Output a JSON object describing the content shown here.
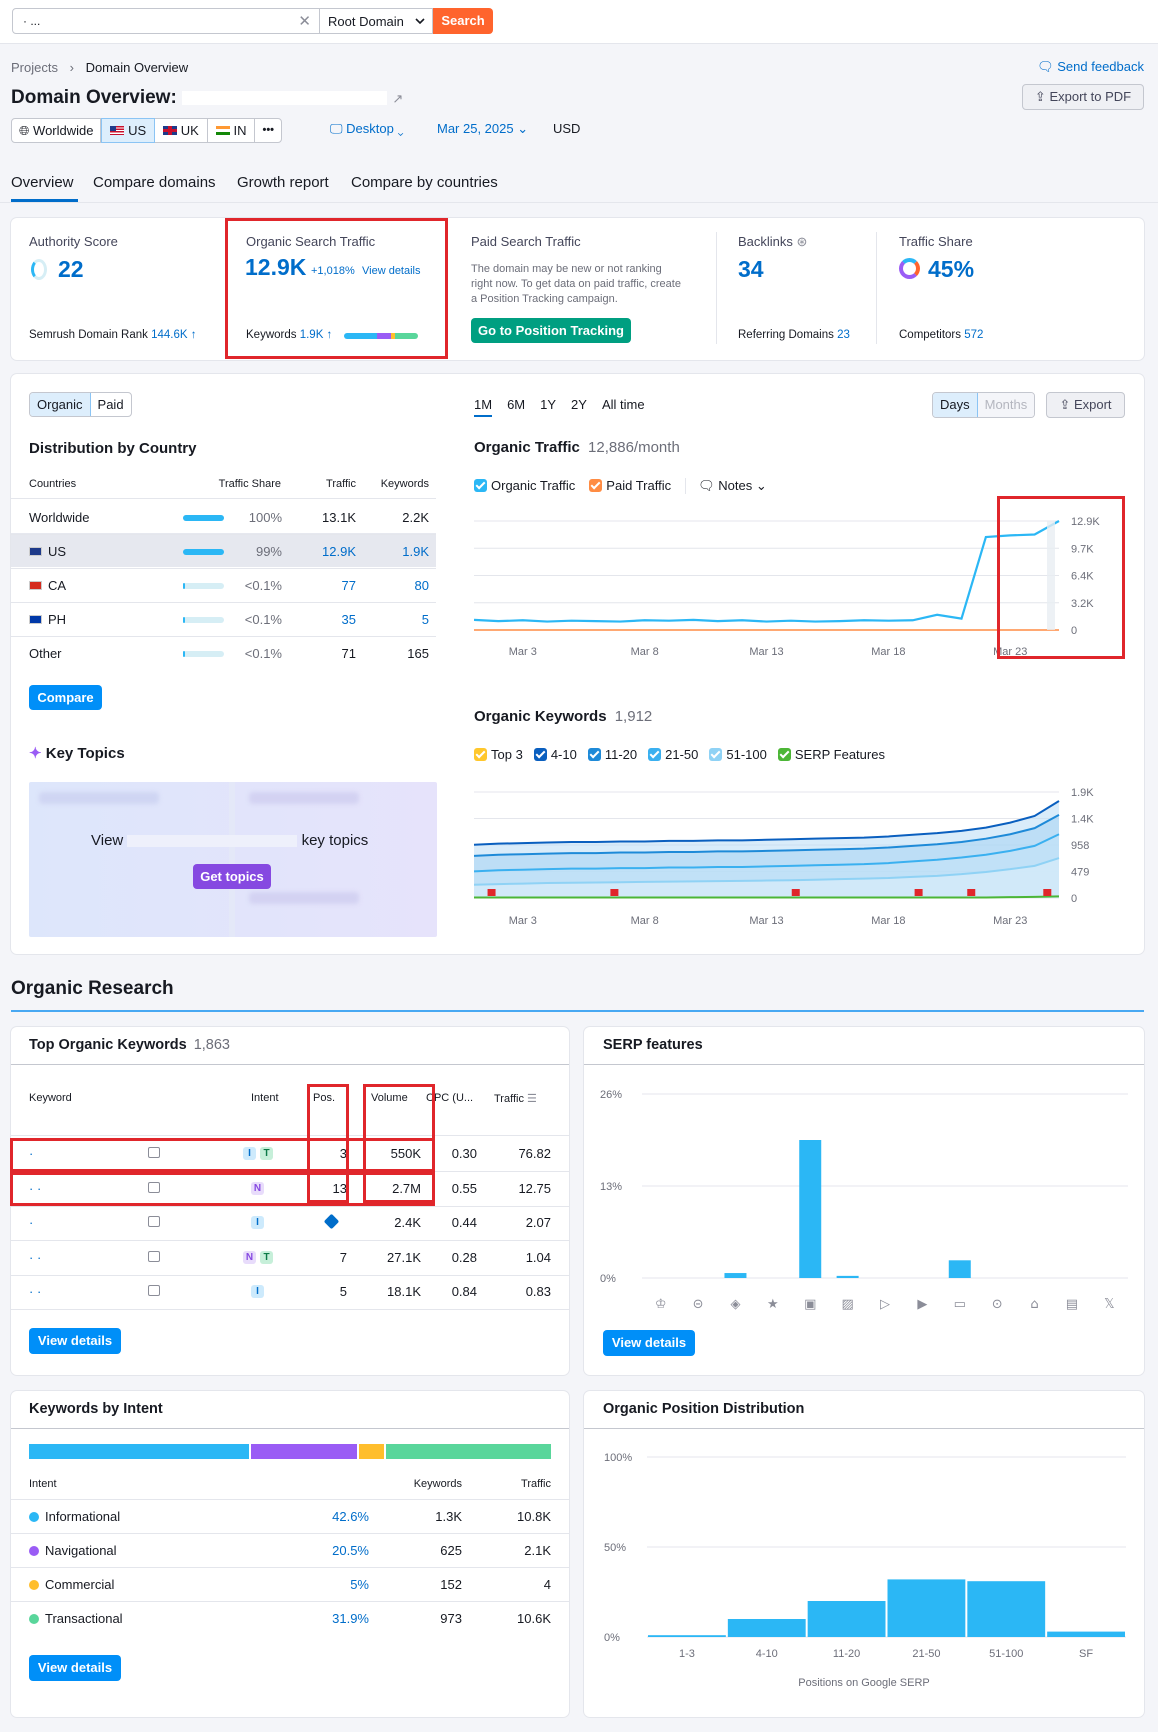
{
  "search": {
    "value": "·           ...",
    "scope": "Root Domain",
    "button": "Search"
  },
  "breadcrumb": {
    "projects": "Projects",
    "current": "Domain Overview"
  },
  "header": {
    "title": "Domain Overview:",
    "send_feedback": "Send feedback",
    "export_pdf": "Export to PDF"
  },
  "filters": {
    "worldwide": "Worldwide",
    "us": "US",
    "uk": "UK",
    "in": "IN",
    "more": "•••",
    "device": "Desktop",
    "date": "Mar 25, 2025",
    "currency": "USD"
  },
  "tabs": [
    "Overview",
    "Compare domains",
    "Growth report",
    "Compare by countries"
  ],
  "summary": {
    "authority": {
      "label": "Authority Score",
      "value": "22",
      "rank_label": "Semrush Domain Rank",
      "rank_value": "144.6K ↑"
    },
    "organic": {
      "label": "Organic Search Traffic",
      "value": "12.9K",
      "change": "+1,018%",
      "details": "View details",
      "kw_label": "Keywords",
      "kw_value": "1.9K ↑"
    },
    "paid": {
      "label": "Paid Search Traffic",
      "note": "The domain may be new or not ranking right now. To get data on paid traffic, create a Position Tracking campaign.",
      "button": "Go to Position Tracking"
    },
    "backlinks": {
      "label": "Backlinks",
      "value": "34",
      "ref_label": "Referring Domains",
      "ref_value": "23"
    },
    "share": {
      "label": "Traffic Share",
      "value": "45%",
      "comp_label": "Competitors",
      "comp_value": "572"
    }
  },
  "distribution": {
    "toggle": [
      "Organic",
      "Paid"
    ],
    "title": "Distribution by Country",
    "headers": [
      "Countries",
      "Traffic Share",
      "Traffic",
      "Keywords"
    ],
    "rows": [
      {
        "country": "Worldwide",
        "share": "100%",
        "traffic": "13.1K",
        "keywords": "2.2K",
        "fill": 1.0
      },
      {
        "country": "US",
        "share": "99%",
        "traffic": "12.9K",
        "keywords": "1.9K",
        "fill": 0.99
      },
      {
        "country": "CA",
        "share": "<0.1%",
        "traffic": "77",
        "keywords": "80",
        "fill": 0.001
      },
      {
        "country": "PH",
        "share": "<0.1%",
        "traffic": "35",
        "keywords": "5",
        "fill": 0.001
      },
      {
        "country": "Other",
        "share": "<0.1%",
        "traffic": "71",
        "keywords": "165",
        "fill": 0.001
      }
    ],
    "compare": "Compare"
  },
  "key_topics": {
    "title": "Key Topics",
    "view_prefix": "View",
    "view_suffix": "key topics",
    "button": "Get topics"
  },
  "periods": [
    "1M",
    "6M",
    "1Y",
    "2Y",
    "All time"
  ],
  "view_toggle": [
    "Days",
    "Months"
  ],
  "export": "Export",
  "organic_traffic": {
    "title": "Organic Traffic",
    "subtitle": "12,886/month",
    "legend": [
      "Organic Traffic",
      "Paid Traffic"
    ],
    "notes": "Notes"
  },
  "organic_keywords": {
    "title": "Organic Keywords",
    "subtitle": "1,912",
    "legend": [
      "Top 3",
      "4-10",
      "11-20",
      "21-50",
      "51-100",
      "SERP Features"
    ]
  },
  "colors": {
    "accent": "#008ff8",
    "organic": "#2bb7f5",
    "paid": "#ff8c43",
    "top3": "#ffc72c",
    "pos4": "#0a5fbf",
    "pos11": "#1e8ad8",
    "pos21": "#3ab0f0",
    "pos51": "#8fd2f5",
    "serp": "#4cb637",
    "brand": "#ff642d"
  },
  "chart_data": [
    {
      "type": "line",
      "title": "Organic Traffic",
      "x": [
        "Mar 1",
        "Mar 2",
        "Mar 3",
        "Mar 4",
        "Mar 5",
        "Mar 6",
        "Mar 7",
        "Mar 8",
        "Mar 9",
        "Mar 10",
        "Mar 11",
        "Mar 12",
        "Mar 13",
        "Mar 14",
        "Mar 15",
        "Mar 16",
        "Mar 17",
        "Mar 18",
        "Mar 19",
        "Mar 20",
        "Mar 21",
        "Mar 22",
        "Mar 23",
        "Mar 24",
        "Mar 25"
      ],
      "x_ticks": [
        "Mar 3",
        "Mar 8",
        "Mar 13",
        "Mar 18",
        "Mar 23"
      ],
      "y_ticks": [
        "12.9K",
        "9.7K",
        "6.4K",
        "3.2K",
        "0"
      ],
      "ylim": [
        0,
        12900
      ],
      "series": [
        {
          "name": "Organic Traffic",
          "values": [
            1200,
            1050,
            1150,
            1000,
            1100,
            1050,
            1000,
            1150,
            1100,
            1200,
            1050,
            1150,
            1000,
            1100,
            1000,
            1050,
            1150,
            1100,
            1150,
            1800,
            1350,
            11000,
            11200,
            11300,
            12900
          ]
        },
        {
          "name": "Paid Traffic",
          "values": [
            0,
            0,
            0,
            0,
            0,
            0,
            0,
            0,
            0,
            0,
            0,
            0,
            0,
            0,
            0,
            0,
            0,
            0,
            0,
            0,
            0,
            0,
            0,
            0,
            0
          ]
        }
      ]
    },
    {
      "type": "area",
      "title": "Organic Keywords",
      "x_ticks": [
        "Mar 3",
        "Mar 8",
        "Mar 13",
        "Mar 18",
        "Mar 23"
      ],
      "y_ticks": [
        "1.9K",
        "1.4K",
        "958",
        "479",
        "0"
      ],
      "ylim": [
        0,
        1912
      ],
      "series": [
        {
          "name": "Top 3",
          "values": [
            1020,
            1040,
            1050,
            1060,
            1070,
            1070,
            1080,
            1080,
            1090,
            1090,
            1100,
            1100,
            1110,
            1120,
            1130,
            1140,
            1150,
            1170,
            1200,
            1230,
            1270,
            1330,
            1420,
            1560,
            1912
          ]
        },
        {
          "name": "4-10",
          "values": [
            960,
            980,
            990,
            1000,
            1010,
            1010,
            1020,
            1020,
            1030,
            1030,
            1040,
            1040,
            1050,
            1060,
            1070,
            1080,
            1090,
            1110,
            1140,
            1170,
            1210,
            1270,
            1360,
            1480,
            1750
          ]
        },
        {
          "name": "11-20",
          "values": [
            760,
            780,
            790,
            800,
            810,
            810,
            820,
            820,
            830,
            830,
            840,
            840,
            850,
            860,
            870,
            880,
            890,
            910,
            940,
            970,
            1010,
            1070,
            1150,
            1260,
            1500
          ]
        },
        {
          "name": "21-50",
          "values": [
            480,
            500,
            510,
            520,
            530,
            530,
            540,
            540,
            550,
            550,
            560,
            560,
            570,
            580,
            590,
            600,
            610,
            630,
            660,
            690,
            730,
            780,
            850,
            940,
            1150
          ]
        },
        {
          "name": "51-100",
          "values": [
            240,
            250,
            260,
            270,
            275,
            280,
            285,
            290,
            295,
            300,
            305,
            310,
            315,
            320,
            330,
            340,
            350,
            360,
            380,
            400,
            430,
            470,
            520,
            580,
            720
          ]
        },
        {
          "name": "SERP Features",
          "values": [
            10,
            10,
            10,
            10,
            10,
            10,
            10,
            10,
            10,
            10,
            10,
            10,
            10,
            10,
            10,
            10,
            10,
            10,
            10,
            10,
            10,
            10,
            15,
            20,
            30
          ]
        }
      ]
    },
    {
      "type": "bar",
      "title": "SERP features",
      "categories": [
        "Featured snippet",
        "Sitelinks",
        "AI overview",
        "Reviews",
        "Image",
        "Image pack",
        "Video",
        "Video carousel",
        "FAQ",
        "Local pack",
        "Knowledge panel",
        "Top stories",
        "X (Twitter)"
      ],
      "y_ticks": [
        "26%",
        "13%",
        "0%"
      ],
      "ylim": [
        0,
        26
      ],
      "values": [
        0,
        0,
        0.7,
        0,
        19.5,
        0.3,
        0,
        0,
        2.5,
        0,
        0,
        0,
        0
      ]
    },
    {
      "type": "bar",
      "title": "Organic Position Distribution",
      "xlabel": "Positions on Google SERP",
      "categories": [
        "1-3",
        "4-10",
        "11-20",
        "21-50",
        "51-100",
        "SF"
      ],
      "y_ticks": [
        "100%",
        "50%",
        "0%"
      ],
      "ylim": [
        0,
        100
      ],
      "values": [
        1,
        10,
        20,
        32,
        31,
        3
      ]
    }
  ],
  "organic_research": {
    "title": "Organic Research"
  },
  "top_keywords": {
    "title": "Top Organic Keywords",
    "count": "1,863",
    "headers": [
      "Keyword",
      "Intent",
      "Pos.",
      "Volume",
      "CPC (U...",
      "Traffic"
    ],
    "rows": [
      {
        "keyword": "·",
        "intents": [
          "I",
          "T"
        ],
        "pos": "3",
        "volume": "550K",
        "cpc": "0.30",
        "traffic": "76.82"
      },
      {
        "keyword": "·  ·",
        "intents": [
          "N"
        ],
        "pos": "13",
        "volume": "2.7M",
        "cpc": "0.55",
        "traffic": "12.75"
      },
      {
        "keyword": "·",
        "intents": [
          "I"
        ],
        "pos": "",
        "volume": "2.4K",
        "cpc": "0.44",
        "traffic": "2.07"
      },
      {
        "keyword": "·  ·",
        "intents": [
          "N",
          "T"
        ],
        "pos": "7",
        "volume": "27.1K",
        "cpc": "0.28",
        "traffic": "1.04"
      },
      {
        "keyword": "·  ·",
        "intents": [
          "I"
        ],
        "pos": "5",
        "volume": "18.1K",
        "cpc": "0.84",
        "traffic": "0.83"
      }
    ],
    "button": "View details"
  },
  "serp_features": {
    "title": "SERP features",
    "button": "View details"
  },
  "intent": {
    "title": "Keywords by Intent",
    "headers": [
      "Intent",
      "Keywords",
      "Traffic"
    ],
    "rows": [
      {
        "name": "Informational",
        "pct": "42.6%",
        "keywords": "1.3K",
        "traffic": "10.8K",
        "color": "#2bb7f5",
        "share": 0.426
      },
      {
        "name": "Navigational",
        "pct": "20.5%",
        "keywords": "625",
        "traffic": "2.1K",
        "color": "#9a5cf5",
        "share": 0.205
      },
      {
        "name": "Commercial",
        "pct": "5%",
        "keywords": "152",
        "traffic": "4",
        "color": "#ffbe2c",
        "share": 0.05
      },
      {
        "name": "Transactional",
        "pct": "31.9%",
        "keywords": "973",
        "traffic": "10.6K",
        "color": "#59d69b",
        "share": 0.319
      }
    ],
    "button": "View details"
  },
  "position_distribution": {
    "title": "Organic Position Distribution",
    "xlabel": "Positions on Google SERP"
  }
}
